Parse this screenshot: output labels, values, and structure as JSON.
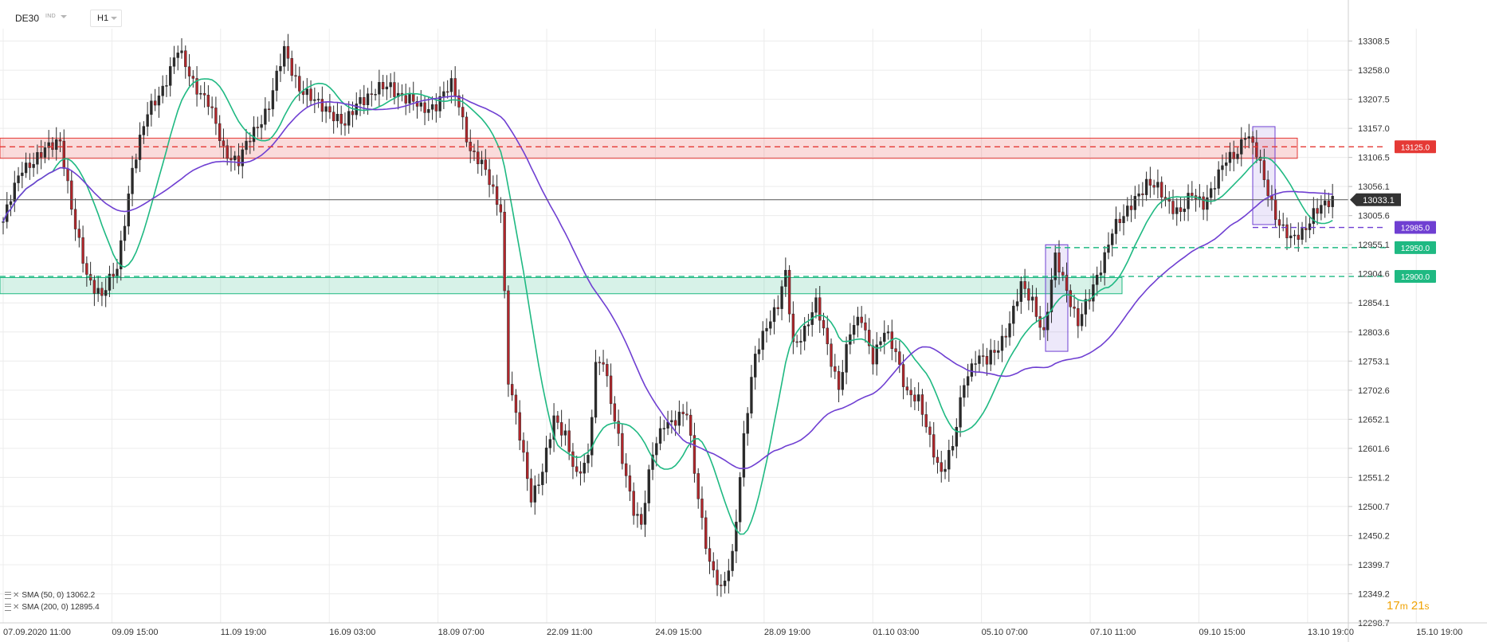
{
  "header": {
    "symbol": "DE30",
    "symbol_tag": "IND",
    "timeframe": "H1"
  },
  "legend": [
    {
      "label": "SMA (50, 0)",
      "value": "13062.2",
      "color": "#1fb982"
    },
    {
      "label": "SMA (200, 0)",
      "value": "12895.4",
      "color": "#6f3fd2"
    }
  ],
  "timer": {
    "minutes": "17",
    "m_unit": "m",
    "seconds": "21",
    "s_unit": "s"
  },
  "chart_data": {
    "type": "candlestick",
    "instrument": "DE30",
    "timeframe": "H1",
    "ylim": [
      12298.7,
      13330
    ],
    "y_ticks": [
      "13308.5",
      "13258.0",
      "13207.5",
      "13157.0",
      "13106.5",
      "13056.1",
      "13005.6",
      "12955.1",
      "12904.6",
      "12854.1",
      "12803.6",
      "12753.1",
      "12702.6",
      "12652.1",
      "12601.6",
      "12551.2",
      "12500.7",
      "12450.2",
      "12399.7",
      "12349.2",
      "12298.7"
    ],
    "x_ticks": [
      "07.09.2020  11:00",
      "09.09  15:00",
      "11.09  19:00",
      "16.09  03:00",
      "18.09  07:00",
      "22.09  11:00",
      "24.09  15:00",
      "28.09  19:00",
      "01.10  03:00",
      "05.10  07:00",
      "07.10  11:00",
      "09.10  15:00",
      "13.10  19:00",
      "15.10  19:00"
    ],
    "current_price": {
      "value": 13033.1,
      "label": "13033.1"
    },
    "price_path": [
      [
        0,
        12995
      ],
      [
        5,
        13090
      ],
      [
        10,
        13110
      ],
      [
        15,
        13140
      ],
      [
        19,
        12980
      ],
      [
        22,
        12900
      ],
      [
        26,
        12870
      ],
      [
        30,
        12910
      ],
      [
        34,
        13090
      ],
      [
        38,
        13180
      ],
      [
        42,
        13230
      ],
      [
        46,
        13290
      ],
      [
        50,
        13240
      ],
      [
        54,
        13200
      ],
      [
        58,
        13120
      ],
      [
        62,
        13100
      ],
      [
        66,
        13150
      ],
      [
        70,
        13200
      ],
      [
        74,
        13290
      ],
      [
        78,
        13230
      ],
      [
        82,
        13200
      ],
      [
        86,
        13190
      ],
      [
        90,
        13160
      ],
      [
        94,
        13210
      ],
      [
        98,
        13220
      ],
      [
        102,
        13230
      ],
      [
        106,
        13210
      ],
      [
        110,
        13190
      ],
      [
        114,
        13200
      ],
      [
        118,
        13230
      ],
      [
        120,
        13200
      ],
      [
        123,
        13120
      ],
      [
        127,
        13080
      ],
      [
        131,
        13020
      ],
      [
        133,
        12720
      ],
      [
        136,
        12620
      ],
      [
        139,
        12520
      ],
      [
        142,
        12560
      ],
      [
        145,
        12650
      ],
      [
        148,
        12630
      ],
      [
        151,
        12550
      ],
      [
        154,
        12580
      ],
      [
        156,
        12750
      ],
      [
        158,
        12760
      ],
      [
        160,
        12680
      ],
      [
        163,
        12580
      ],
      [
        166,
        12500
      ],
      [
        168,
        12470
      ],
      [
        171,
        12590
      ],
      [
        174,
        12650
      ],
      [
        177,
        12650
      ],
      [
        180,
        12660
      ],
      [
        183,
        12520
      ],
      [
        186,
        12400
      ],
      [
        189,
        12350
      ],
      [
        192,
        12420
      ],
      [
        195,
        12620
      ],
      [
        198,
        12760
      ],
      [
        201,
        12820
      ],
      [
        204,
        12850
      ],
      [
        206,
        12900
      ],
      [
        208,
        12780
      ],
      [
        211,
        12810
      ],
      [
        214,
        12850
      ],
      [
        217,
        12780
      ],
      [
        220,
        12710
      ],
      [
        223,
        12800
      ],
      [
        226,
        12830
      ],
      [
        229,
        12760
      ],
      [
        232,
        12800
      ],
      [
        235,
        12770
      ],
      [
        238,
        12700
      ],
      [
        241,
        12680
      ],
      [
        244,
        12620
      ],
      [
        247,
        12560
      ],
      [
        250,
        12600
      ],
      [
        253,
        12720
      ],
      [
        256,
        12760
      ],
      [
        259,
        12750
      ],
      [
        262,
        12780
      ],
      [
        265,
        12820
      ],
      [
        268,
        12880
      ],
      [
        271,
        12860
      ],
      [
        274,
        12800
      ],
      [
        277,
        12930
      ],
      [
        280,
        12880
      ],
      [
        283,
        12820
      ],
      [
        286,
        12860
      ],
      [
        289,
        12920
      ],
      [
        292,
        12980
      ],
      [
        295,
        13000
      ],
      [
        298,
        13040
      ],
      [
        301,
        13060
      ],
      [
        304,
        13050
      ],
      [
        307,
        13030
      ],
      [
        310,
        13010
      ],
      [
        313,
        13040
      ],
      [
        316,
        13030
      ],
      [
        319,
        13060
      ],
      [
        322,
        13100
      ],
      [
        325,
        13120
      ],
      [
        327,
        13150
      ],
      [
        330,
        13110
      ],
      [
        333,
        13050
      ],
      [
        336,
        12990
      ],
      [
        339,
        12960
      ],
      [
        342,
        12980
      ],
      [
        345,
        13010
      ],
      [
        348,
        13020
      ],
      [
        350,
        13035
      ]
    ],
    "levels": [
      {
        "value": 13125.0,
        "label": "13125.0",
        "color": "#e53935",
        "style": "dashed"
      },
      {
        "value": 12985.0,
        "label": "12985.0",
        "color": "#6f3fd2",
        "style": "dashed"
      },
      {
        "value": 12950.0,
        "label": "12950.0",
        "color": "#1fb982",
        "style": "dashed"
      },
      {
        "value": 12900.0,
        "label": "12900.0",
        "color": "#1fb982",
        "style": "dashed"
      }
    ],
    "zones": [
      {
        "from": 13105,
        "to": 13140,
        "color": "#e53935"
      },
      {
        "from": 12870,
        "to": 12898,
        "color": "#1fb982"
      }
    ],
    "series": [
      {
        "name": "SMA (50, 0)",
        "last": 13062.2,
        "color": "#1fb982"
      },
      {
        "name": "SMA (200, 0)",
        "last": 12895.4,
        "color": "#6f3fd2"
      }
    ],
    "colors": {
      "bull": "#2a2a2a",
      "bear": "#b3262b",
      "grid": "#ececec",
      "current": "#555555",
      "axis_label_bg": "#333333"
    }
  }
}
